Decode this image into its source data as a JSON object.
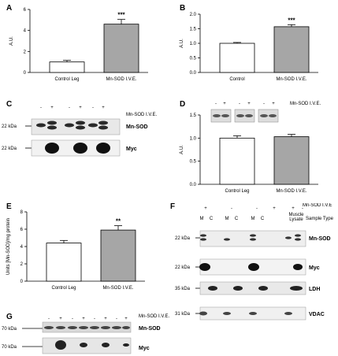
{
  "panel_labels": {
    "a": "A",
    "b": "B",
    "c": "C",
    "d": "D",
    "e": "E",
    "f": "F",
    "g": "G"
  },
  "chart_data": [
    {
      "panel": "A",
      "type": "bar",
      "categories": [
        "Control Leg",
        "Mn-SOD I.V.E."
      ],
      "values": [
        1.0,
        4.6
      ],
      "errors": [
        0.15,
        0.45
      ],
      "fills": [
        "#ffffff",
        "#a6a6a6"
      ],
      "ylabel": "A.U.",
      "ylim": [
        0,
        6
      ],
      "yticks": [
        "0",
        "2",
        "4",
        "6"
      ],
      "ytickvals": [
        0,
        2,
        4,
        6
      ],
      "significance": "***"
    },
    {
      "panel": "B",
      "type": "bar",
      "categories": [
        "Control",
        "Mn-SOD I.V.E."
      ],
      "values": [
        1.0,
        1.57
      ],
      "errors": [
        0.03,
        0.07
      ],
      "fills": [
        "#ffffff",
        "#a6a6a6"
      ],
      "ylabel": "A.U.",
      "ylim": [
        0,
        2.0
      ],
      "yticks": [
        "0.0",
        "0.5",
        "1.0",
        "1.5",
        "2.0"
      ],
      "ytickvals": [
        0,
        0.5,
        1.0,
        1.5,
        2.0
      ],
      "significance": "***"
    },
    {
      "panel": "D",
      "type": "bar",
      "categories": [
        "Control Leg",
        "Mn-SOD I.V.E."
      ],
      "values": [
        1.0,
        1.03
      ],
      "errors": [
        0.05,
        0.05
      ],
      "fills": [
        "#ffffff",
        "#a6a6a6"
      ],
      "ylabel": "A.U.",
      "ylim": [
        0,
        1.5
      ],
      "yticks": [
        "0.0",
        "0.5",
        "1.0",
        "1.5"
      ],
      "ytickvals": [
        0,
        0.5,
        1.0,
        1.5
      ],
      "significance": ""
    },
    {
      "panel": "E",
      "type": "bar",
      "categories": [
        "Control Leg",
        "Mn-SOD I.V.E."
      ],
      "values": [
        4.4,
        5.9
      ],
      "errors": [
        0.3,
        0.5
      ],
      "fills": [
        "#ffffff",
        "#a6a6a6"
      ],
      "ylabel": "Units [Mn-SOD]/mg protein",
      "ylim": [
        0,
        8
      ],
      "yticks": [
        "0",
        "2",
        "4",
        "6",
        "8"
      ],
      "ytickvals": [
        0,
        2,
        4,
        6,
        8
      ],
      "significance": "**"
    }
  ],
  "blots": {
    "c": {
      "signs": [
        "-",
        "+",
        "-",
        "+",
        "-",
        "+"
      ],
      "header": "Mn-SOD I.V.E.",
      "markers": [
        "22 kDa",
        "22 kDa"
      ],
      "rows": [
        "Mn-SOD",
        "Myc"
      ]
    },
    "d": {
      "signs": [
        "-",
        "+",
        "-",
        "+",
        "-",
        "+"
      ],
      "header": "Mn-SOD I.V.E."
    },
    "f": {
      "signs": [
        "+",
        "-",
        "-",
        "+",
        "+",
        "-"
      ],
      "header": "Mn-SOD I.V.E",
      "cols": [
        "M",
        "C",
        "M",
        "C",
        "M",
        "C",
        "Muscle",
        "Lysate"
      ],
      "sample_type": "Sample Type",
      "markers": [
        "22 kDa",
        "22 kDa",
        "35 kDa",
        "31 kDa"
      ],
      "rows": [
        "Mn-SOD",
        "Myc",
        "LDH",
        "VDAC"
      ]
    },
    "g": {
      "signs": [
        "-",
        "+",
        "-",
        "+",
        "-",
        "+",
        "-",
        "+"
      ],
      "header": "Mn-SOD I.V.E.",
      "markers": [
        "70 kDa",
        "70 kDa"
      ],
      "rows": [
        "Mn-SOD",
        "Myc"
      ]
    }
  }
}
